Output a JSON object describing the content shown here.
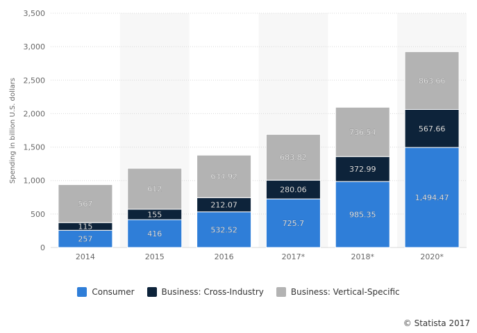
{
  "colors": {
    "consumer": "#2f7ed8",
    "cross_industry": "#0d233a",
    "vertical": "#b3b3b3",
    "band": "#f7f7f7",
    "grid": "#d8d8d8"
  },
  "credit": "© Statista 2017",
  "chart_data": {
    "type": "bar",
    "stacked": true,
    "categories": [
      "2014",
      "2015",
      "2016",
      "2017*",
      "2018*",
      "2020*"
    ],
    "series": [
      {
        "name": "Consumer",
        "color_key": "consumer",
        "values": [
          257,
          416,
          532.52,
          725.7,
          985.35,
          1494.47
        ],
        "labels": [
          "257",
          "416",
          "532.52",
          "725.7",
          "985.35",
          "1,494.47"
        ]
      },
      {
        "name": "Business: Cross-Industry",
        "color_key": "cross_industry",
        "values": [
          115,
          155,
          212.07,
          280.06,
          372.99,
          567.66
        ],
        "labels": [
          "115",
          "155",
          "212.07",
          "280.06",
          "372.99",
          "567.66"
        ]
      },
      {
        "name": "Business: Vertical-Specific",
        "color_key": "vertical",
        "values": [
          567,
          612,
          634.92,
          683.82,
          736.54,
          863.66
        ],
        "labels": [
          "567",
          "612",
          "634.92",
          "683.82",
          "736.54",
          "863.66"
        ]
      }
    ],
    "ylabel": "Spending in billion U.S. dollars",
    "ylim": [
      0,
      3500
    ],
    "yticks": [
      0,
      500,
      1000,
      1500,
      2000,
      2500,
      3000,
      3500
    ],
    "ytick_labels": [
      "0",
      "500",
      "1,000",
      "1,500",
      "2,000",
      "2,500",
      "3,000",
      "3,500"
    ],
    "grid": true,
    "legend_position": "bottom-center"
  }
}
